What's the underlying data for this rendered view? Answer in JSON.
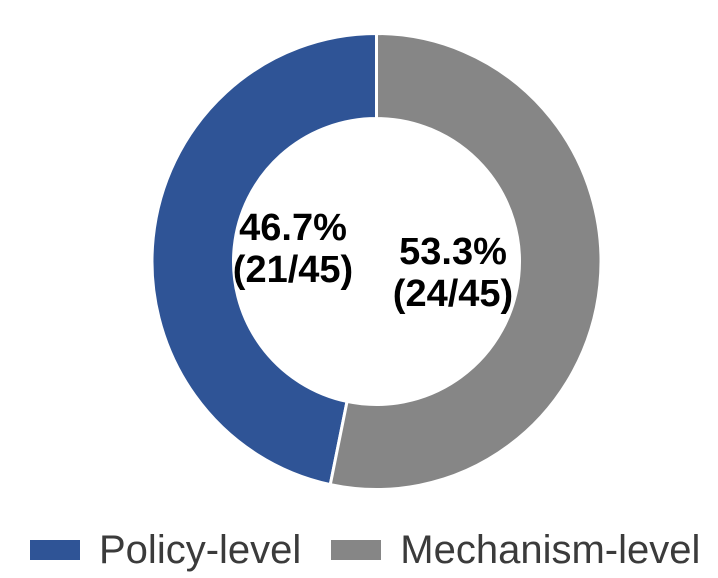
{
  "chart_data": {
    "type": "pie",
    "subtype": "donut",
    "title": "",
    "categories": [
      "Policy-level",
      "Mechanism-level"
    ],
    "series": [
      {
        "name": "Policy-level",
        "count": 21,
        "total": 45,
        "percent": 46.7,
        "color": "#2F5496"
      },
      {
        "name": "Mechanism-level",
        "count": 24,
        "total": 45,
        "percent": 53.3,
        "color": "#868686"
      }
    ],
    "layout": {
      "start_angle_deg": 0,
      "first_series_direction": "counterclockwise",
      "hole_ratio": 0.63,
      "separator_color": "#ffffff",
      "legend_position": "bottom",
      "label_color": "#000000"
    }
  },
  "donut_labels": {
    "policy": {
      "line1": "46.7%",
      "line2": "(21/45)"
    },
    "mechanism": {
      "line1": "53.3%",
      "line2": "(24/45)"
    }
  },
  "legend": {
    "items": [
      {
        "label": "Policy-level",
        "color": "#2F5496"
      },
      {
        "label": "Mechanism-level",
        "color": "#868686"
      }
    ],
    "text_color": "#3b3b3b"
  }
}
